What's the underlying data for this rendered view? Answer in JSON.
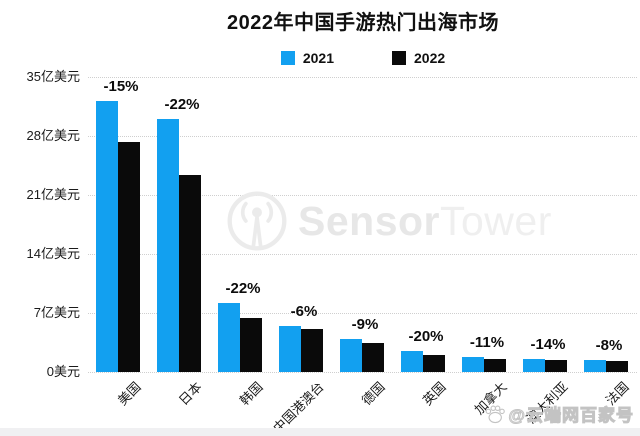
{
  "page": {
    "watermark_center": {
      "brand_bold": "Sensor",
      "brand_light": "Tower",
      "logo": "sensortower-logo-icon"
    },
    "watermark_corner": {
      "text": "@云端网百家号",
      "icon": "baidu-paw-icon"
    }
  },
  "chart_data": {
    "type": "bar",
    "title": "2022年中国手游热门出海市场",
    "unit": "亿美元",
    "categories": [
      "美国",
      "日本",
      "韩国",
      "中国港澳台",
      "德国",
      "英国",
      "加拿大",
      "澳大利亚",
      "法国"
    ],
    "series": [
      {
        "name": "2021",
        "color": "#12A0F0",
        "values": [
          32.1,
          30.0,
          8.2,
          5.4,
          3.9,
          2.5,
          1.8,
          1.6,
          1.4
        ]
      },
      {
        "name": "2022",
        "color": "#0A0A0A",
        "values": [
          27.3,
          23.4,
          6.4,
          5.1,
          3.5,
          2.0,
          1.6,
          1.4,
          1.3
        ]
      }
    ],
    "change_labels": [
      "-15%",
      "-22%",
      "-22%",
      "-6%",
      "-9%",
      "-20%",
      "-11%",
      "-14%",
      "-8%"
    ],
    "y_ticks": [
      "35亿美元",
      "28亿美元",
      "21亿美元",
      "14亿美元",
      "7亿美元",
      "0美元"
    ],
    "y_tick_values": [
      35,
      28,
      21,
      14,
      7,
      0
    ],
    "ylim": [
      0,
      35
    ],
    "grid": "horizontal-dotted",
    "legend_position": "top-center"
  }
}
